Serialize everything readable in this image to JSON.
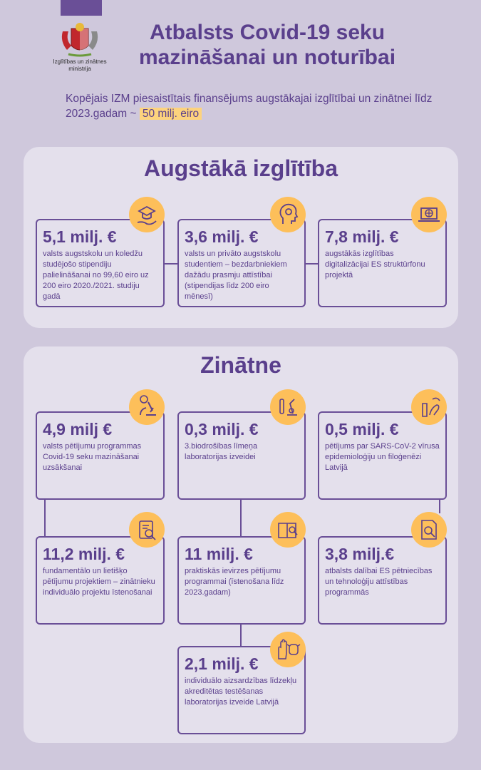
{
  "logo": {
    "caption": "Izglītības un zinātnes ministrija"
  },
  "title": "Atbalsts Covid-19 seku mazināšanai un noturībai",
  "intro": {
    "text": "Kopējais IZM piesaistītais finansējums augstākajai izglītībai un zinātnei līdz 2023.gadam ~ ",
    "highlight": "50 milj. eiro"
  },
  "higher_ed": {
    "heading": "Augstākā izglītība",
    "cards": [
      {
        "amount": "5,1 milj. €",
        "desc": "valsts augstskolu un koledžu studējošo stipendiju palielināšanai no 99,60 eiro uz 200 eiro 2020./2021. studiju gadā",
        "icon": "graduation-cap-hand-icon"
      },
      {
        "amount": "3,6 milj. €",
        "desc": "valsts un privāto augstskolu studentiem – bezdarbniekiem dažādu prasmju attīstībai (stipendijas līdz 200 eiro mēnesī)",
        "icon": "head-gear-icon"
      },
      {
        "amount": "7,8 milj. €",
        "desc": "augstākās izglītības digitalizācijai ES struktūrfonu projektā",
        "icon": "laptop-globe-icon"
      }
    ]
  },
  "science": {
    "heading": "Zinātne",
    "cards": [
      {
        "amount": "4,9 milj €",
        "desc": "valsts pētījumu programmas Covid-19 seku mazināšanai uzsākšanai",
        "icon": "microscope-virus-icon"
      },
      {
        "amount": "0,3 milj. €",
        "desc": "3.biodrošības līmeņa laboratorijas izveidei",
        "icon": "lab-equipment-icon"
      },
      {
        "amount": "0,5 milj. €",
        "desc": "pētījums par SARS-CoV-2 vīrusa epidemioloģiju un filoģenēzi Latvijā",
        "icon": "test-tube-hand-icon"
      },
      {
        "amount": "11,2 milj. €",
        "desc": "fundamentālo un lietišķo pētījumu projektiem – zinātnieku individuālo projektu īstenošanai",
        "icon": "clipboard-search-icon"
      },
      {
        "amount": "11 milj. €",
        "desc": "praktiskās ievirzes pētījumu programmai (īstenošana līdz 2023.gadam)",
        "icon": "book-magnifier-icon"
      },
      {
        "amount": "3,8 milj.€",
        "desc": "atbalsts dalībai ES pētniecības un tehnoloģiju attīstības programmās",
        "icon": "document-search-icon"
      },
      {
        "amount": "2,1 milj. €",
        "desc": "individuālo aizsardzības līdzekļu akreditētas testēšanas laboratorijas izveide Latvijā",
        "icon": "glove-mask-icon"
      }
    ]
  },
  "colors": {
    "background": "#cfc8dc",
    "panel": "#e4e0ec",
    "accent": "#5a3f8c",
    "icon_circle": "#fdbf5a",
    "highlight": "#fdd37d"
  }
}
